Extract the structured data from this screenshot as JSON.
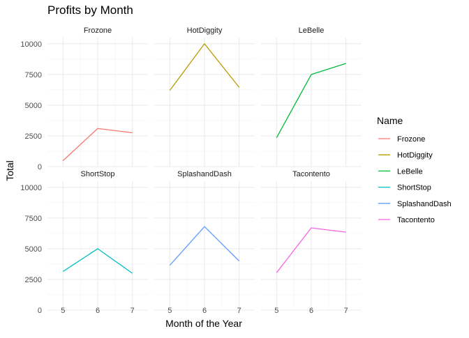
{
  "chart_data": {
    "type": "line",
    "title": "Profits by Month",
    "xlabel": "Month of the Year",
    "ylabel": "Total",
    "x": [
      5,
      6,
      7
    ],
    "xlim": [
      4.55,
      7.45
    ],
    "ylim": [
      0,
      10500
    ],
    "yticks": [
      0,
      2500,
      5000,
      7500,
      10000
    ],
    "ytick_labels": [
      "0",
      "2500",
      "5000",
      "7500",
      "10000"
    ],
    "xtick_labels": [
      "5",
      "6",
      "7"
    ],
    "grid": true,
    "facet_by": "Name",
    "facet_layout": "3 columns x 2 rows",
    "legend": {
      "title": "Name",
      "position": "right"
    },
    "series": [
      {
        "name": "Frozone",
        "color": "#F8766D",
        "values": [
          480,
          3100,
          2750
        ]
      },
      {
        "name": "HotDiggity",
        "color": "#B79F00",
        "values": [
          6200,
          10000,
          6450
        ]
      },
      {
        "name": "LeBelle",
        "color": "#00BA38",
        "values": [
          2350,
          7500,
          8400
        ]
      },
      {
        "name": "ShortStop",
        "color": "#00BFC4",
        "values": [
          3150,
          5000,
          3000
        ]
      },
      {
        "name": "SplashandDash",
        "color": "#619CFF",
        "values": [
          3650,
          6800,
          4000
        ]
      },
      {
        "name": "Tacontento",
        "color": "#F564E3",
        "values": [
          3050,
          6700,
          6350
        ]
      }
    ]
  }
}
